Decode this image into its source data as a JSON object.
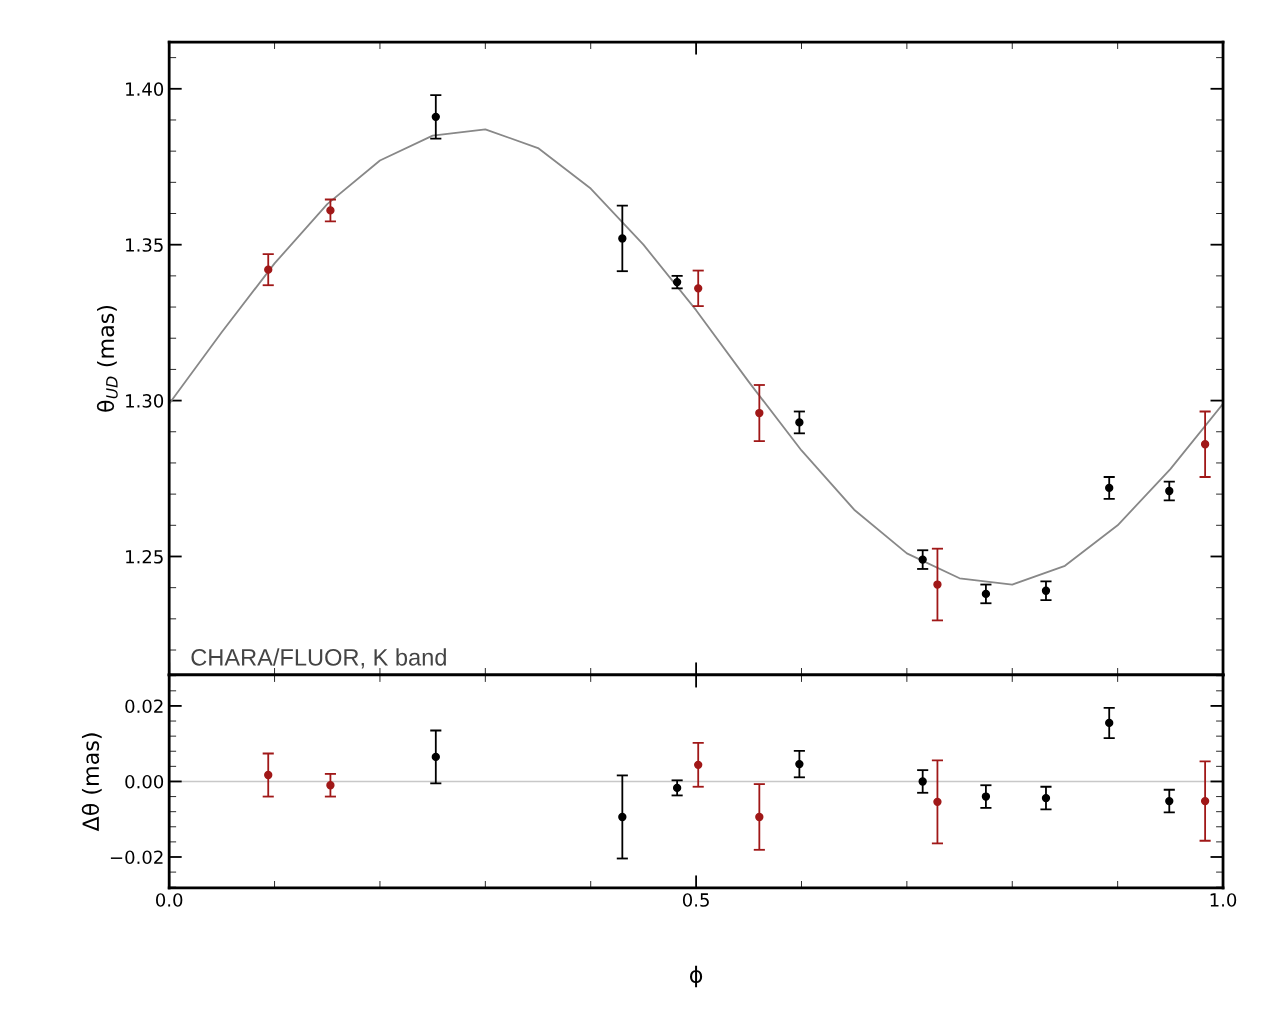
{
  "chart_data": [
    {
      "type": "scatter",
      "ylabel": "θ$_{UD}$ (mas)",
      "annotations": [
        "CHARA/FLUOR, K band"
      ],
      "xlim": [
        0,
        1
      ],
      "ylim": [
        1.212,
        1.415
      ],
      "xticks": [
        {
          "value": 0,
          "label": null
        },
        {
          "value": 0.5,
          "label": null
        },
        {
          "value": 1,
          "label": null
        }
      ],
      "yticks": [
        {
          "value": 1.25,
          "label": "1.25"
        },
        {
          "value": 1.3,
          "label": "1.30"
        },
        {
          "value": 1.35,
          "label": "1.35"
        },
        {
          "value": 1.4,
          "label": "1.40"
        }
      ],
      "tick_labels": "y",
      "marker": "circle",
      "series": [
        {
          "type": "line",
          "marker": "none",
          "color": "#888888",
          "line_style": "solid",
          "x": [
            0,
            0.05,
            0.1,
            0.15,
            0.2,
            0.25,
            0.3,
            0.35,
            0.4,
            0.45,
            0.5,
            0.55,
            0.6,
            0.65,
            0.7,
            0.75,
            0.8,
            0.85,
            0.9,
            0.95,
            1.0
          ],
          "values": [
            1.299,
            1.322,
            1.344,
            1.363,
            1.377,
            1.385,
            1.387,
            1.381,
            1.368,
            1.35,
            1.329,
            1.306,
            1.284,
            1.265,
            1.251,
            1.243,
            1.241,
            1.247,
            1.26,
            1.278,
            1.299
          ]
        },
        {
          "color": "#a01818",
          "x": [
            0.094,
            0.153,
            0.502,
            0.56,
            0.729,
            0.983
          ],
          "values": [
            1.342,
            1.361,
            1.336,
            1.296,
            1.241,
            1.286
          ],
          "errors": [
            0.005,
            0.0035,
            0.0057,
            0.009,
            0.0115,
            0.0105
          ]
        },
        {
          "color": "#000000",
          "x": [
            0.253,
            0.43,
            0.482,
            0.598,
            0.715,
            0.775,
            0.832,
            0.892,
            0.949
          ],
          "values": [
            1.391,
            1.352,
            1.338,
            1.293,
            1.249,
            1.238,
            1.239,
            1.272,
            1.271
          ],
          "errors": [
            0.007,
            0.0105,
            0.002,
            0.0035,
            0.003,
            0.003,
            0.003,
            0.0035,
            0.003
          ]
        }
      ]
    },
    {
      "type": "scatter",
      "xlabel": "ϕ",
      "ylabel": "Δθ (mas)",
      "xlim": [
        0,
        1
      ],
      "ylim": [
        -0.0282,
        0.0282
      ],
      "xticks": [
        {
          "value": 0,
          "label": "0.0"
        },
        {
          "value": 0.5,
          "label": "0.5"
        },
        {
          "value": 1,
          "label": "1.0"
        }
      ],
      "yticks": [
        {
          "value": -0.02,
          "label": "−0.02"
        },
        {
          "value": 0,
          "label": "0.00"
        },
        {
          "value": 0.02,
          "label": "0.02"
        }
      ],
      "marker": "circle",
      "ref_lines": [
        {
          "axis": "y",
          "value": 0,
          "color": "#c8c8c8"
        }
      ],
      "series": [
        {
          "color": "#a01818",
          "x": [
            0.094,
            0.153,
            0.502,
            0.56,
            0.729,
            0.983
          ],
          "values": [
            0.0017,
            -0.001,
            0.0044,
            -0.0094,
            -0.0054,
            -0.0052
          ],
          "errors": [
            0.0057,
            0.003,
            0.0058,
            0.0087,
            0.011,
            0.0105
          ]
        },
        {
          "color": "#000000",
          "x": [
            0.253,
            0.43,
            0.482,
            0.598,
            0.715,
            0.775,
            0.832,
            0.892,
            0.949
          ],
          "values": [
            0.0065,
            -0.0094,
            -0.0017,
            0.0046,
            0.0,
            -0.004,
            -0.0044,
            0.0155,
            -0.0052
          ],
          "errors": [
            0.007,
            0.011,
            0.002,
            0.0035,
            0.003,
            0.003,
            0.003,
            0.004,
            0.003
          ]
        }
      ]
    }
  ]
}
